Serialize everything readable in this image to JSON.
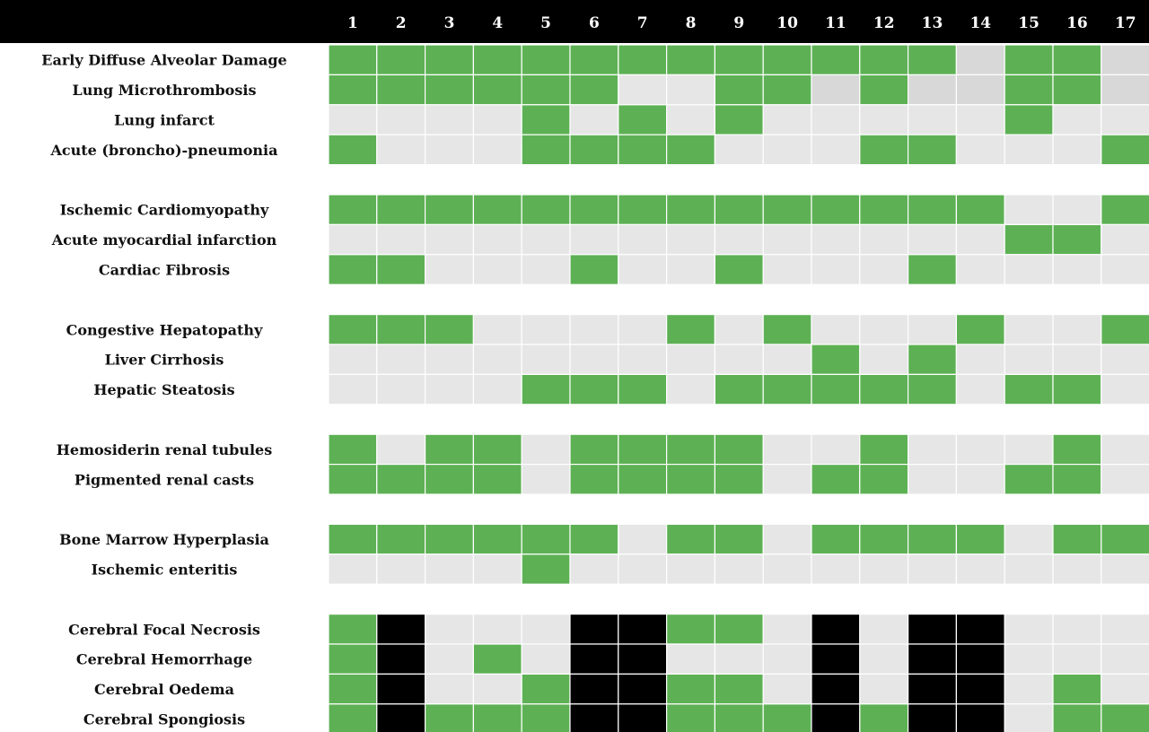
{
  "chart_data": {
    "type": "heatmap",
    "columns": [
      "1",
      "2",
      "3",
      "4",
      "5",
      "6",
      "7",
      "8",
      "9",
      "10",
      "11",
      "12",
      "13",
      "14",
      "15",
      "16",
      "17"
    ],
    "legend": {
      "G": {
        "color": "#5db154"
      },
      "L": {
        "color": "#e6e6e6"
      },
      "D": {
        "color": "#d8d8d8"
      },
      "B": {
        "color": "#000000"
      }
    },
    "groups": [
      {
        "rows": [
          {
            "label": "Early Diffuse Alveolar Damage",
            "cells": [
              "G",
              "G",
              "G",
              "G",
              "G",
              "G",
              "G",
              "G",
              "G",
              "G",
              "G",
              "G",
              "G",
              "D",
              "G",
              "G",
              "D"
            ]
          },
          {
            "label": "Lung Microthrombosis",
            "cells": [
              "G",
              "G",
              "G",
              "G",
              "G",
              "G",
              "L",
              "L",
              "G",
              "G",
              "D",
              "G",
              "D",
              "D",
              "G",
              "G",
              "D"
            ]
          },
          {
            "label": "Lung infarct",
            "cells": [
              "L",
              "L",
              "L",
              "L",
              "G",
              "L",
              "G",
              "L",
              "G",
              "L",
              "L",
              "L",
              "L",
              "L",
              "G",
              "L",
              "L"
            ]
          },
          {
            "label": "Acute (broncho)-pneumonia",
            "cells": [
              "G",
              "L",
              "L",
              "L",
              "G",
              "G",
              "G",
              "G",
              "L",
              "L",
              "L",
              "G",
              "G",
              "L",
              "L",
              "L",
              "G"
            ]
          }
        ]
      },
      {
        "rows": [
          {
            "label": "Ischemic Cardiomyopathy",
            "cells": [
              "G",
              "G",
              "G",
              "G",
              "G",
              "G",
              "G",
              "G",
              "G",
              "G",
              "G",
              "G",
              "G",
              "G",
              "L",
              "L",
              "G"
            ]
          },
          {
            "label": "Acute myocardial infarction",
            "cells": [
              "L",
              "L",
              "L",
              "L",
              "L",
              "L",
              "L",
              "L",
              "L",
              "L",
              "L",
              "L",
              "L",
              "L",
              "G",
              "G",
              "L"
            ]
          },
          {
            "label": "Cardiac Fibrosis",
            "cells": [
              "G",
              "G",
              "L",
              "L",
              "L",
              "G",
              "L",
              "L",
              "G",
              "L",
              "L",
              "L",
              "G",
              "L",
              "L",
              "L",
              "L"
            ]
          }
        ]
      },
      {
        "rows": [
          {
            "label": "Congestive Hepatopathy",
            "cells": [
              "G",
              "G",
              "G",
              "L",
              "L",
              "L",
              "L",
              "G",
              "L",
              "G",
              "L",
              "L",
              "L",
              "G",
              "L",
              "L",
              "G"
            ]
          },
          {
            "label": "Liver Cirrhosis",
            "cells": [
              "L",
              "L",
              "L",
              "L",
              "L",
              "L",
              "L",
              "L",
              "L",
              "L",
              "G",
              "L",
              "G",
              "L",
              "L",
              "L",
              "L"
            ]
          },
          {
            "label": "Hepatic Steatosis",
            "cells": [
              "L",
              "L",
              "L",
              "L",
              "G",
              "G",
              "G",
              "L",
              "G",
              "G",
              "G",
              "G",
              "G",
              "L",
              "G",
              "G",
              "L"
            ]
          }
        ]
      },
      {
        "rows": [
          {
            "label": "Hemosiderin renal tubules",
            "cells": [
              "G",
              "L",
              "G",
              "G",
              "L",
              "G",
              "G",
              "G",
              "G",
              "L",
              "L",
              "G",
              "L",
              "L",
              "L",
              "G",
              "L"
            ]
          },
          {
            "label": "Pigmented renal casts",
            "cells": [
              "G",
              "G",
              "G",
              "G",
              "L",
              "G",
              "G",
              "G",
              "G",
              "L",
              "G",
              "G",
              "L",
              "L",
              "G",
              "G",
              "L"
            ]
          }
        ]
      },
      {
        "rows": [
          {
            "label": "Bone Marrow Hyperplasia",
            "cells": [
              "G",
              "G",
              "G",
              "G",
              "G",
              "G",
              "L",
              "G",
              "G",
              "L",
              "G",
              "G",
              "G",
              "G",
              "L",
              "G",
              "G"
            ]
          },
          {
            "label": "Ischemic enteritis",
            "cells": [
              "L",
              "L",
              "L",
              "L",
              "G",
              "L",
              "L",
              "L",
              "L",
              "L",
              "L",
              "L",
              "L",
              "L",
              "L",
              "L",
              "L"
            ]
          }
        ]
      },
      {
        "rows": [
          {
            "label": "Cerebral Focal Necrosis",
            "cells": [
              "G",
              "B",
              "L",
              "L",
              "L",
              "B",
              "B",
              "G",
              "G",
              "L",
              "B",
              "L",
              "B",
              "B",
              "L",
              "L",
              "L"
            ]
          },
          {
            "label": "Cerebral Hemorrhage",
            "cells": [
              "G",
              "B",
              "L",
              "G",
              "L",
              "B",
              "B",
              "L",
              "L",
              "L",
              "B",
              "L",
              "B",
              "B",
              "L",
              "L",
              "L"
            ]
          },
          {
            "label": "Cerebral Oedema",
            "cells": [
              "G",
              "B",
              "L",
              "L",
              "G",
              "B",
              "B",
              "G",
              "G",
              "L",
              "B",
              "L",
              "B",
              "B",
              "L",
              "G",
              "L"
            ]
          },
          {
            "label": "Cerebral Spongiosis",
            "cells": [
              "G",
              "B",
              "G",
              "G",
              "G",
              "B",
              "B",
              "G",
              "G",
              "G",
              "B",
              "G",
              "B",
              "B",
              "L",
              "G",
              "G"
            ]
          }
        ]
      }
    ]
  }
}
